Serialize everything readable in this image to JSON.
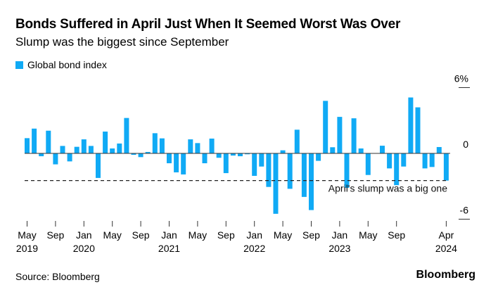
{
  "chart_data": {
    "type": "bar",
    "title": "Bonds Suffered in April Just When It Seemed Worst Was Over",
    "subtitle": "Slump was the biggest since September",
    "legend": [
      {
        "label": "Global bond index",
        "color": "#10aaf5"
      }
    ],
    "legend_placement": "top-left",
    "xlabel": "",
    "ylabel": "",
    "ylim": [
      -6,
      6
    ],
    "y_ticks": [
      {
        "value": 6,
        "label": "6%"
      },
      {
        "value": 0,
        "label": "0"
      },
      {
        "value": -6,
        "label": "-6"
      }
    ],
    "x_ticks": [
      {
        "index": 0,
        "month": "May",
        "year": "2019"
      },
      {
        "index": 4,
        "month": "Sep",
        "year": ""
      },
      {
        "index": 8,
        "month": "Jan",
        "year": "2020"
      },
      {
        "index": 12,
        "month": "May",
        "year": ""
      },
      {
        "index": 16,
        "month": "Sep",
        "year": ""
      },
      {
        "index": 20,
        "month": "Jan",
        "year": "2021"
      },
      {
        "index": 24,
        "month": "May",
        "year": ""
      },
      {
        "index": 28,
        "month": "Sep",
        "year": ""
      },
      {
        "index": 32,
        "month": "Jan",
        "year": "2022"
      },
      {
        "index": 36,
        "month": "May",
        "year": ""
      },
      {
        "index": 40,
        "month": "Sep",
        "year": ""
      },
      {
        "index": 44,
        "month": "Jan",
        "year": "2023"
      },
      {
        "index": 48,
        "month": "May",
        "year": ""
      },
      {
        "index": 52,
        "month": "Sep",
        "year": ""
      },
      {
        "index": 59,
        "month": "Apr",
        "year": "2024"
      }
    ],
    "categories_start": "May 2019",
    "categories_end": "Apr 2024",
    "series": [
      {
        "name": "Global bond index",
        "values": [
          1.39,
          2.26,
          -0.26,
          2.07,
          -1.0,
          0.68,
          -0.73,
          0.6,
          1.28,
          0.68,
          -2.24,
          1.99,
          0.45,
          0.9,
          3.23,
          -0.13,
          -0.34,
          0.13,
          1.84,
          1.37,
          -0.9,
          -1.73,
          -1.92,
          1.28,
          0.94,
          -0.9,
          1.35,
          -0.4,
          -1.8,
          -0.2,
          -0.26,
          -0.08,
          -2.05,
          -1.2,
          -3.06,
          -5.51,
          0.28,
          -3.23,
          2.16,
          -3.97,
          -5.17,
          -0.68,
          4.79,
          0.56,
          3.33,
          -3.14,
          3.2,
          0.45,
          -1.97,
          0.02,
          0.7,
          -1.37,
          -2.9,
          -1.2,
          5.1,
          4.2,
          -1.37,
          -1.24,
          0.58,
          -2.48
        ]
      }
    ],
    "annotation": {
      "text": "April's slump was a big one",
      "value": -2.48
    },
    "grid": false
  },
  "footer": {
    "source": "Source: Bloomberg",
    "brand": "Bloomberg"
  }
}
